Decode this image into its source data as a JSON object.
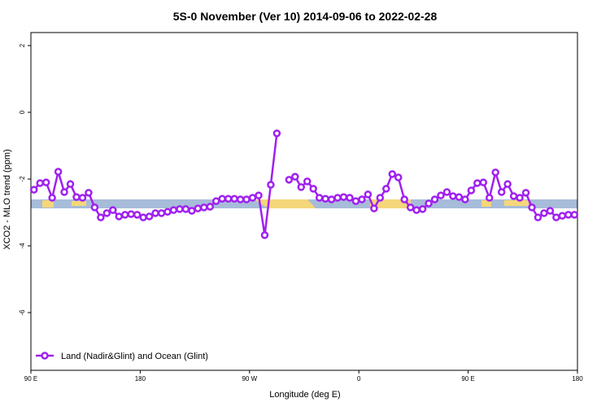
{
  "chart_data": {
    "type": "line",
    "title": "5S-0 November (Ver 10)   2014-09-06 to 2022-02-28",
    "x_label": "Longitude (deg E)",
    "y_label": "XCO2 - MLO trend (ppm)",
    "x": [
      92.5,
      97.5,
      102.5,
      107.5,
      112.5,
      117.5,
      122.5,
      127.5,
      132.5,
      137.5,
      142.5,
      147.5,
      152.5,
      157.5,
      162.5,
      167.5,
      172.5,
      177.5,
      182.5,
      187.5,
      192.5,
      197.5,
      202.5,
      207.5,
      212.5,
      217.5,
      222.5,
      227.5,
      232.5,
      237.5,
      242.5,
      247.5,
      252.5,
      257.5,
      262.5,
      267.5,
      272.5,
      277.5,
      282.5,
      287.5,
      292.5,
      297.5,
      302.5,
      307.5,
      312.5,
      317.5,
      322.5,
      327.5,
      332.5,
      337.5,
      342.5,
      347.5,
      352.5,
      357.5,
      362.5,
      367.5,
      372.5,
      377.5,
      382.5,
      387.5,
      392.5,
      397.5,
      402.5,
      407.5,
      412.5,
      417.5,
      422.5,
      427.5,
      432.5,
      437.5,
      442.5,
      447.5,
      452.5,
      457.5,
      462.5,
      467.5,
      472.5,
      477.5,
      482.5,
      487.5,
      492.5,
      497.5,
      502.5,
      507.5,
      512.5,
      517.5,
      522.5,
      527.5,
      532.5,
      537.5
    ],
    "series": [
      {
        "name": "Land (Nadir&Glint) and Ocean (Glint)",
        "color": "#a020f0",
        "values": [
          -2.32,
          -2.12,
          -2.1,
          -2.56,
          -1.78,
          -2.39,
          -2.15,
          -2.54,
          -2.56,
          -2.41,
          -2.85,
          -3.15,
          -3.02,
          -2.93,
          -3.12,
          -3.07,
          -3.05,
          -3.07,
          -3.15,
          -3.12,
          -3.02,
          -3.02,
          -2.98,
          -2.93,
          -2.9,
          -2.9,
          -2.95,
          -2.88,
          -2.85,
          -2.83,
          -2.66,
          -2.59,
          -2.59,
          -2.59,
          -2.61,
          -2.61,
          -2.56,
          -2.49,
          -3.68,
          -2.17,
          -0.63,
          null,
          -2.02,
          -1.93,
          -2.24,
          -2.07,
          -2.29,
          -2.56,
          -2.59,
          -2.61,
          -2.56,
          -2.54,
          -2.56,
          -2.66,
          -2.61,
          -2.46,
          -2.88,
          -2.56,
          -2.29,
          -1.85,
          -1.95,
          -2.61,
          -2.85,
          -2.93,
          -2.9,
          -2.73,
          -2.61,
          -2.49,
          -2.39,
          -2.51,
          -2.54,
          -2.61,
          -2.34,
          -2.12,
          -2.1,
          -2.56,
          -1.8,
          -2.39,
          -2.15,
          -2.51,
          -2.56,
          -2.41,
          -2.85,
          -3.15,
          -3.02,
          -2.95,
          -3.15,
          -3.1,
          -3.07,
          -3.07
        ]
      }
    ],
    "xlim": [
      90,
      540
    ],
    "xticks": [
      {
        "value": 90,
        "label": "90 E"
      },
      {
        "value": 180,
        "label": "180"
      },
      {
        "value": 270,
        "label": "90 W"
      },
      {
        "value": 360,
        "label": "0"
      },
      {
        "value": 450,
        "label": "90 E"
      },
      {
        "value": 540,
        "label": "180"
      }
    ],
    "ylim": [
      -7.73,
      2.39
    ],
    "yticks": [
      -6,
      -4,
      -2,
      0,
      2
    ],
    "legend": "bottom-left"
  }
}
